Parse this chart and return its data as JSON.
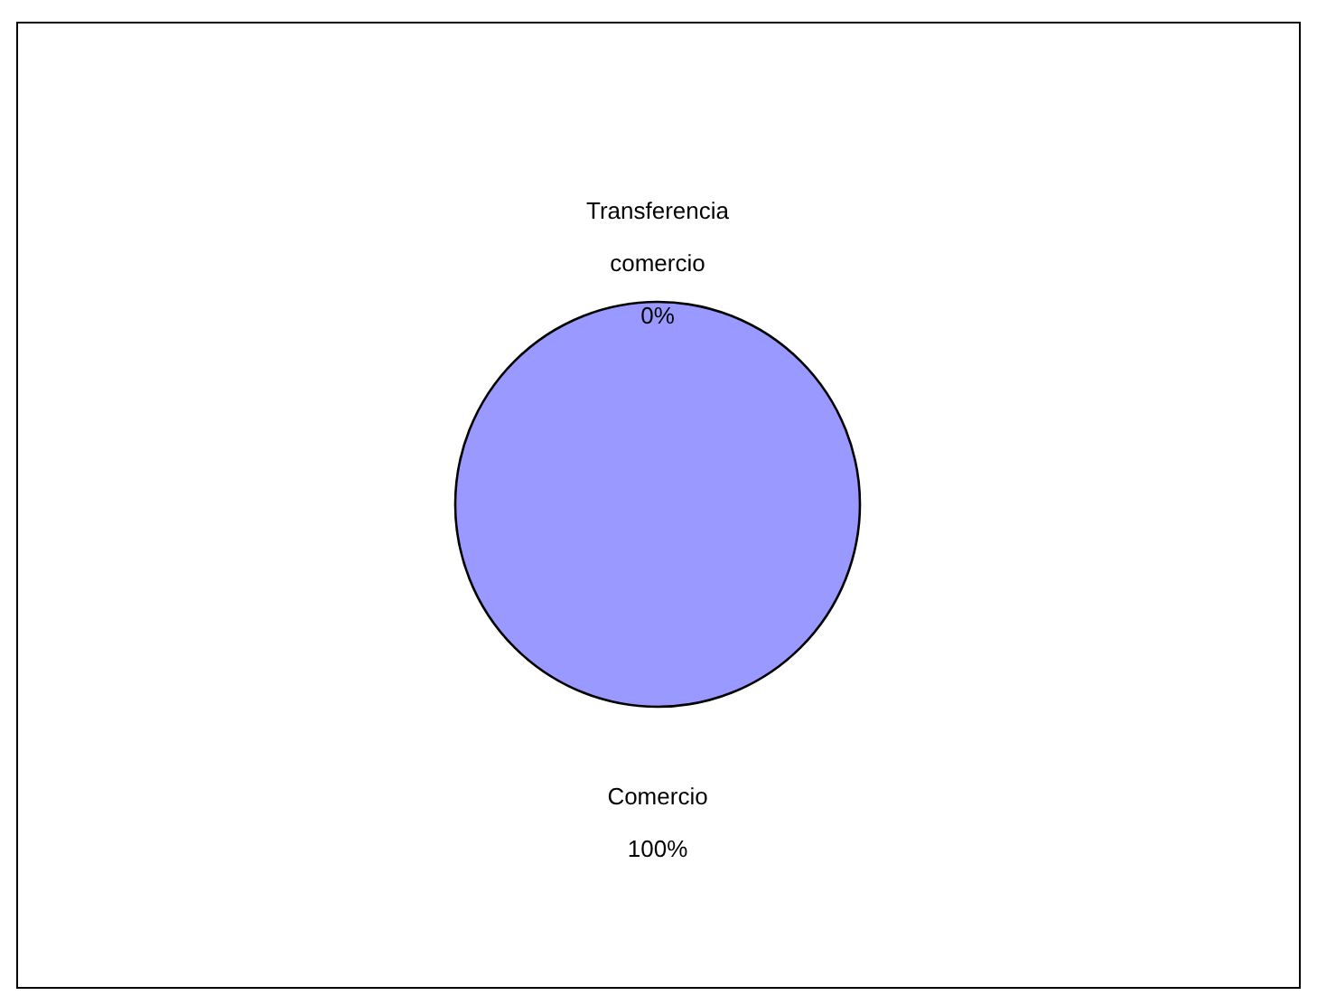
{
  "chart_data": {
    "type": "pie",
    "categories": [
      "Transferencia comercio",
      "Comercio"
    ],
    "values": [
      0,
      100
    ],
    "colors": [
      "#993366",
      "#9999ff"
    ],
    "value_labels": [
      "0%",
      "100%"
    ]
  }
}
